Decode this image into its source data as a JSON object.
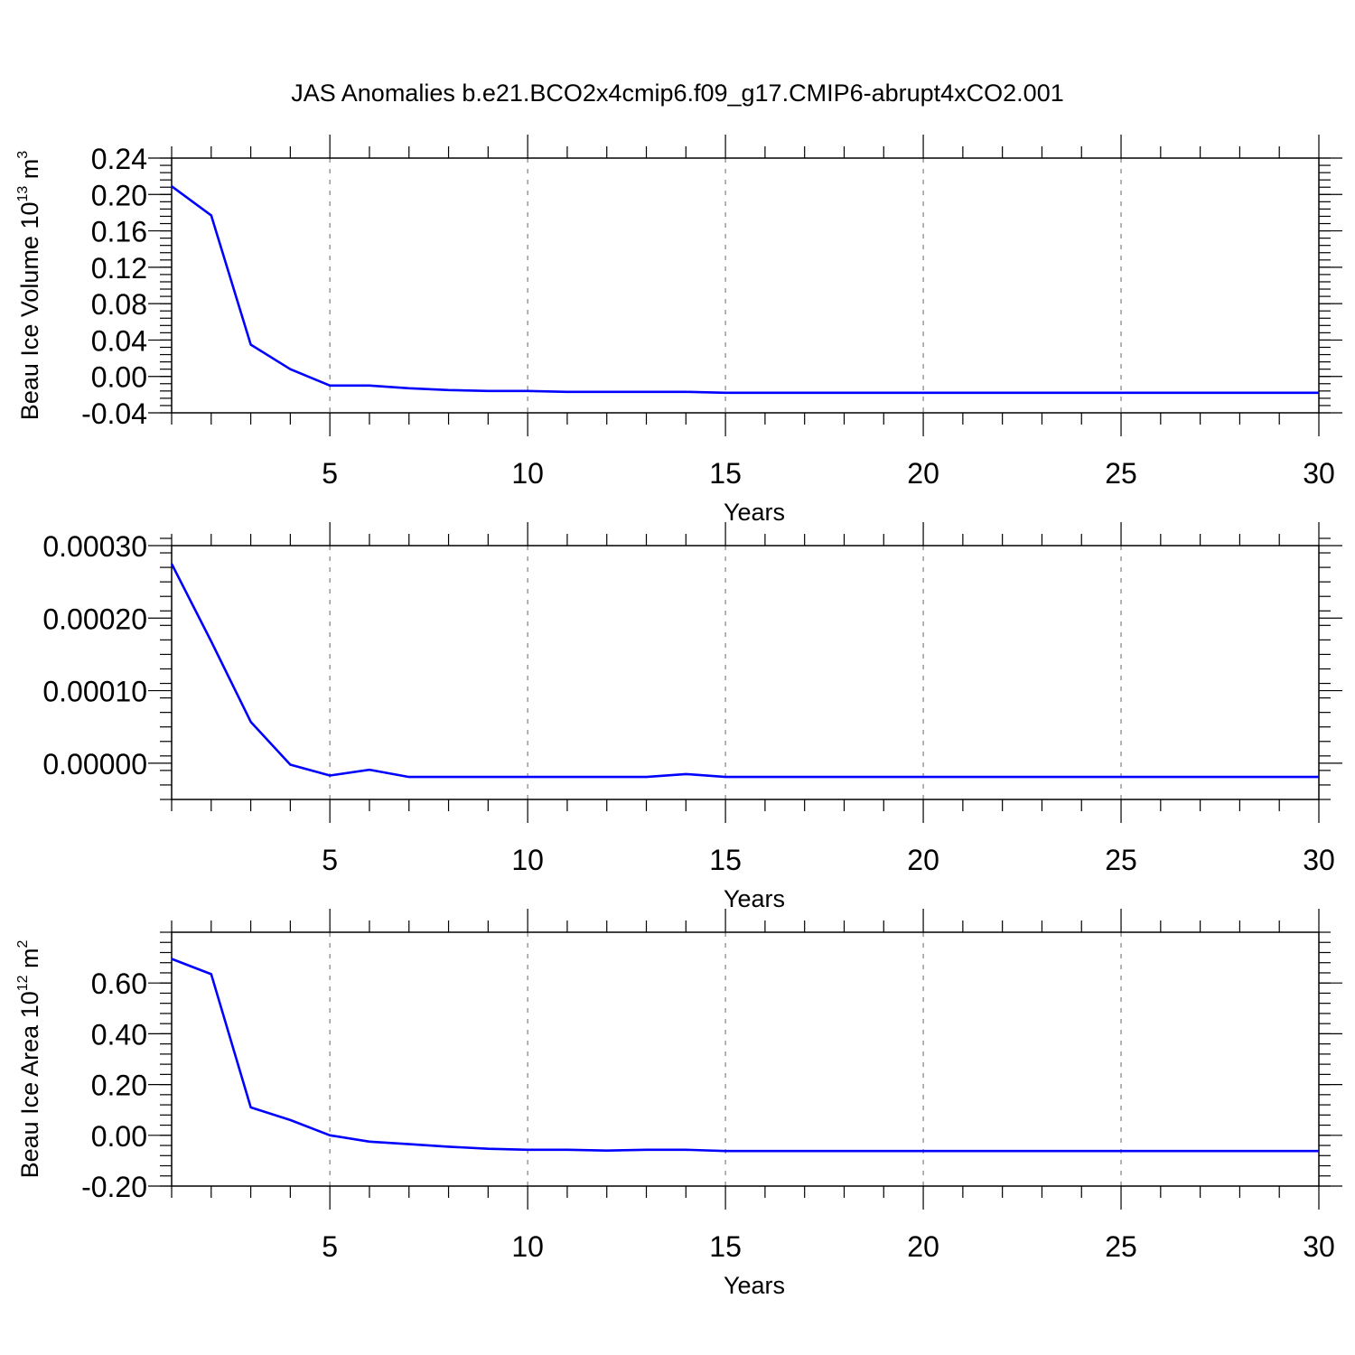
{
  "chart_data": [
    {
      "type": "line",
      "title": "JAS Anomalies b.e21.BCO2x4cmip6.f09_g17.CMIP6-abrupt4xCO2.001",
      "xlabel": "Years",
      "ylabel": "Beau Ice Volume 10",
      "ylabel_exponent": "13",
      "ylabel_unit": " m",
      "ylabel_unit_power": "3",
      "xlim": [
        1,
        30
      ],
      "ylim": [
        -0.04,
        0.24
      ],
      "xticks": [
        5,
        10,
        15,
        20,
        25,
        30
      ],
      "yticks": [
        -0.04,
        0.0,
        0.04,
        0.08,
        0.12,
        0.16,
        0.2,
        0.24
      ],
      "xtick_labels": [
        "5",
        "10",
        "15",
        "20",
        "25",
        "30"
      ],
      "ytick_labels": [
        "-0.04",
        "0.00",
        "0.04",
        "0.08",
        "0.12",
        "0.16",
        "0.20",
        "0.24"
      ],
      "grid": "vertical dashed at major x ticks",
      "series": [
        {
          "color": "#0000ff",
          "x": [
            1,
            2,
            3,
            4,
            5,
            6,
            7,
            8,
            9,
            10,
            11,
            12,
            13,
            14,
            15,
            16,
            17,
            18,
            19,
            20,
            21,
            22,
            23,
            24,
            25,
            26,
            27,
            28,
            29,
            30
          ],
          "y": [
            0.209,
            0.177,
            0.035,
            0.008,
            -0.01,
            -0.01,
            -0.013,
            -0.015,
            -0.016,
            -0.016,
            -0.017,
            -0.017,
            -0.017,
            -0.017,
            -0.018,
            -0.018,
            -0.018,
            -0.018,
            -0.018,
            -0.018,
            -0.018,
            -0.018,
            -0.018,
            -0.018,
            -0.018,
            -0.018,
            -0.018,
            -0.018,
            -0.018,
            -0.018
          ]
        }
      ]
    },
    {
      "type": "line",
      "xlabel": "Years",
      "ylabel": "",
      "xlim": [
        1,
        30
      ],
      "ylim": [
        -5e-05,
        0.0003
      ],
      "xticks": [
        5,
        10,
        15,
        20,
        25,
        30
      ],
      "yticks": [
        0.0,
        0.0001,
        0.0002,
        0.0003
      ],
      "xtick_labels": [
        "5",
        "10",
        "15",
        "20",
        "25",
        "30"
      ],
      "ytick_labels": [
        "0.00000",
        "0.00010",
        "0.00020",
        "0.00030"
      ],
      "grid": "vertical dashed at major x ticks",
      "series": [
        {
          "color": "#0000ff",
          "x": [
            1,
            2,
            3,
            4,
            5,
            6,
            7,
            8,
            9,
            10,
            11,
            12,
            13,
            14,
            15,
            16,
            17,
            18,
            19,
            20,
            21,
            22,
            23,
            24,
            25,
            26,
            27,
            28,
            29,
            30
          ],
          "y": [
            0.000275,
            0.000168,
            5.7e-05,
            -2e-06,
            -1.7e-05,
            -9e-06,
            -1.9e-05,
            -1.9e-05,
            -1.9e-05,
            -1.9e-05,
            -1.9e-05,
            -1.9e-05,
            -1.9e-05,
            -1.5e-05,
            -1.9e-05,
            -1.9e-05,
            -1.9e-05,
            -1.9e-05,
            -1.9e-05,
            -1.9e-05,
            -1.9e-05,
            -1.9e-05,
            -1.9e-05,
            -1.9e-05,
            -1.9e-05,
            -1.9e-05,
            -1.9e-05,
            -1.9e-05,
            -1.9e-05,
            -1.9e-05
          ]
        }
      ]
    },
    {
      "type": "line",
      "xlabel": "Years",
      "ylabel": "Beau Ice Area 10",
      "ylabel_exponent": "12",
      "ylabel_unit": " m",
      "ylabel_unit_power": "2",
      "xlim": [
        1,
        30
      ],
      "ylim": [
        -0.2,
        0.8
      ],
      "xticks": [
        5,
        10,
        15,
        20,
        25,
        30
      ],
      "yticks": [
        -0.2,
        0.0,
        0.2,
        0.4,
        0.6
      ],
      "xtick_labels": [
        "5",
        "10",
        "15",
        "20",
        "25",
        "30"
      ],
      "ytick_labels": [
        "-0.20",
        "0.00",
        "0.20",
        "0.40",
        "0.60"
      ],
      "grid": "vertical dashed at major x ticks",
      "series": [
        {
          "color": "#0000ff",
          "x": [
            1,
            2,
            3,
            4,
            5,
            6,
            7,
            8,
            9,
            10,
            11,
            12,
            13,
            14,
            15,
            16,
            17,
            18,
            19,
            20,
            21,
            22,
            23,
            24,
            25,
            26,
            27,
            28,
            29,
            30
          ],
          "y": [
            0.695,
            0.635,
            0.11,
            0.06,
            0.0,
            -0.025,
            -0.035,
            -0.045,
            -0.053,
            -0.057,
            -0.057,
            -0.06,
            -0.057,
            -0.057,
            -0.062,
            -0.062,
            -0.062,
            -0.062,
            -0.062,
            -0.062,
            -0.062,
            -0.062,
            -0.062,
            -0.062,
            -0.062,
            -0.062,
            -0.062,
            -0.062,
            -0.062,
            -0.062
          ]
        }
      ]
    }
  ]
}
